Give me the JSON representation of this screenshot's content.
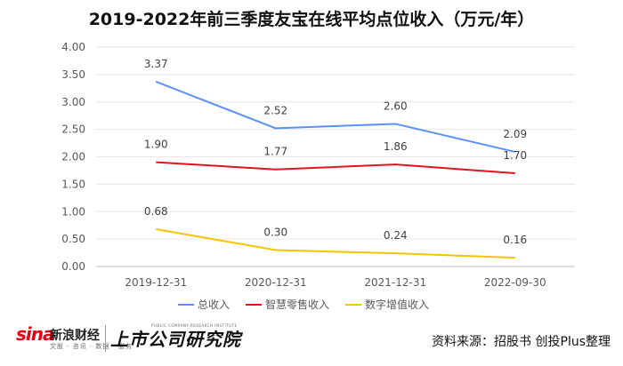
{
  "chart_data": {
    "type": "line",
    "title": "2019-2022年前三季度友宝在线平均点位收入（万元/年）",
    "categories": [
      "2019-12-31",
      "2020-12-31",
      "2021-12-31",
      "2022-09-30"
    ],
    "series": [
      {
        "name": "总收入",
        "color": "#5b8ff9",
        "values": [
          3.37,
          2.52,
          2.6,
          2.09
        ]
      },
      {
        "name": "智慧零售收入",
        "color": "#e0141e",
        "values": [
          1.9,
          1.77,
          1.86,
          1.7
        ]
      },
      {
        "name": "数字增值收入",
        "color": "#f5c400",
        "values": [
          0.68,
          0.3,
          0.24,
          0.16
        ]
      }
    ],
    "ylim": [
      0,
      4
    ],
    "yticks": [
      "0.00",
      "0.50",
      "1.00",
      "1.50",
      "2.00",
      "2.50",
      "3.00",
      "3.50",
      "4.00"
    ],
    "xlabel": "",
    "ylabel": "",
    "grid": true,
    "legend_position": "bottom"
  },
  "footer": {
    "sina_logo": "sina",
    "sina_name": "新浪财经",
    "sina_sub": "文股 · 咨讯 · 数据 · 服务",
    "institute": "上市公司研究院",
    "institute_en": "PUBLIC COMPANY RESEARCH INSTITUTE",
    "source": "资料来源：招股书 创投Plus整理"
  }
}
